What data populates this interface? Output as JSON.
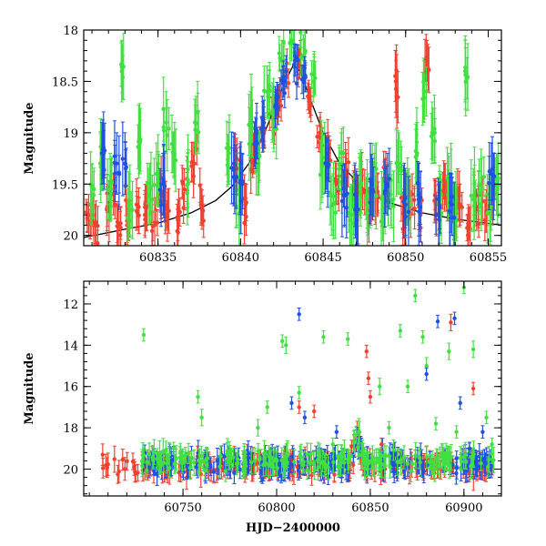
{
  "colors": {
    "red": "#f04030",
    "green": "#40e040",
    "blue": "#2050e0",
    "model": "#000000"
  },
  "chart_data": [
    {
      "type": "scatter",
      "title": "",
      "xlabel": "",
      "ylabel": "Magnitude",
      "xlim": [
        60830.5,
        60855.8
      ],
      "ylim": [
        20.1,
        18.0
      ],
      "y_inverted": true,
      "xticks": [
        60835,
        60840,
        60845,
        60850,
        60855
      ],
      "xtick_labels": [
        "60835",
        "60840",
        "60845",
        "60850",
        "60855"
      ],
      "yticks": [
        18,
        18.5,
        19,
        19.5,
        20
      ],
      "ytick_labels": [
        "18",
        "18.5",
        "19",
        "19.5",
        "20"
      ],
      "grid": false,
      "legend": "none",
      "model_curve": {
        "name": "",
        "x": [
          60830.5,
          60833,
          60835,
          60837,
          60838.5,
          60839.5,
          60840.5,
          60841.5,
          60842.2,
          60842.8,
          60843.2,
          60843.6,
          60844.2,
          60845,
          60846,
          60847.5,
          60849,
          60851,
          60853,
          60855.8
        ],
        "y": [
          20.02,
          19.94,
          19.88,
          19.78,
          19.66,
          19.52,
          19.3,
          18.98,
          18.7,
          18.47,
          18.34,
          18.4,
          18.66,
          19.0,
          19.3,
          19.55,
          19.68,
          19.78,
          19.84,
          19.9
        ]
      },
      "series": [
        {
          "color": "red",
          "points": [
            [
              60830.8,
              19.8,
              0.2
            ],
            [
              60831.2,
              19.9,
              0.2
            ],
            [
              60831.9,
              19.75,
              0.25
            ],
            [
              60832.3,
              19.6,
              0.2
            ],
            [
              60832.6,
              19.9,
              0.2
            ],
            [
              60833.2,
              19.85,
              0.2
            ],
            [
              60833.7,
              19.7,
              0.25
            ],
            [
              60834.2,
              19.8,
              0.2
            ],
            [
              60834.8,
              19.9,
              0.2
            ],
            [
              60835.2,
              19.6,
              0.2
            ],
            [
              60835.6,
              19.75,
              0.2
            ],
            [
              60836.2,
              19.85,
              0.2
            ],
            [
              60836.6,
              19.55,
              0.2
            ],
            [
              60837.2,
              19.3,
              0.2
            ],
            [
              60837.6,
              19.7,
              0.2
            ],
            [
              60839.8,
              19.35,
              0.2
            ],
            [
              60840.3,
              19.7,
              0.2
            ],
            [
              60840.8,
              19.2,
              0.2
            ],
            [
              60841.3,
              19.0,
              0.15
            ],
            [
              60841.9,
              18.8,
              0.15
            ],
            [
              60842.3,
              18.7,
              0.15
            ],
            [
              60842.8,
              18.45,
              0.12
            ],
            [
              60843.6,
              18.35,
              0.12
            ],
            [
              60844.2,
              18.7,
              0.15
            ],
            [
              60844.8,
              19.0,
              0.15
            ],
            [
              60845.3,
              19.2,
              0.2
            ],
            [
              60845.8,
              19.5,
              0.2
            ],
            [
              60846.4,
              19.4,
              0.2
            ],
            [
              60846.9,
              19.6,
              0.2
            ],
            [
              60847.4,
              19.55,
              0.2
            ],
            [
              60847.9,
              19.7,
              0.2
            ],
            [
              60848.3,
              19.6,
              0.2
            ],
            [
              60848.8,
              19.45,
              0.2
            ],
            [
              60849.4,
              18.5,
              0.3
            ],
            [
              60849.9,
              19.75,
              0.2
            ],
            [
              60850.4,
              19.6,
              0.2
            ],
            [
              60850.9,
              19.8,
              0.2
            ],
            [
              60851.3,
              18.3,
              0.2
            ],
            [
              60851.8,
              19.65,
              0.2
            ],
            [
              60852.4,
              19.5,
              0.2
            ],
            [
              60852.9,
              19.8,
              0.2
            ],
            [
              60853.3,
              19.7,
              0.2
            ],
            [
              60853.8,
              19.9,
              0.2
            ],
            [
              60854.3,
              19.75,
              0.2
            ],
            [
              60854.8,
              19.85,
              0.2
            ],
            [
              60855.3,
              19.6,
              0.2
            ]
          ]
        },
        {
          "color": "green",
          "points": [
            [
              60831.0,
              19.6,
              0.3
            ],
            [
              60831.5,
              19.3,
              0.3
            ],
            [
              60832.1,
              19.5,
              0.3
            ],
            [
              60832.8,
              18.4,
              0.3
            ],
            [
              60833.3,
              19.7,
              0.3
            ],
            [
              60833.9,
              19.1,
              0.3
            ],
            [
              60834.5,
              19.6,
              0.3
            ],
            [
              60834.9,
              19.4,
              0.3
            ],
            [
              60835.5,
              18.9,
              0.3
            ],
            [
              60836.0,
              19.2,
              0.3
            ],
            [
              60836.8,
              19.5,
              0.3
            ],
            [
              60837.4,
              18.8,
              0.3
            ],
            [
              60839.3,
              19.2,
              0.3
            ],
            [
              60839.9,
              19.6,
              0.3
            ],
            [
              60840.6,
              18.9,
              0.3
            ],
            [
              60841.1,
              19.3,
              0.3
            ],
            [
              60841.6,
              18.6,
              0.25
            ],
            [
              60842.0,
              18.9,
              0.25
            ],
            [
              60842.5,
              18.3,
              0.2
            ],
            [
              60843.1,
              18.1,
              0.2
            ],
            [
              60843.8,
              18.25,
              0.2
            ],
            [
              60844.4,
              18.5,
              0.2
            ],
            [
              60845.0,
              19.3,
              0.3
            ],
            [
              60845.6,
              19.7,
              0.3
            ],
            [
              60846.1,
              19.3,
              0.3
            ],
            [
              60846.7,
              19.8,
              0.3
            ],
            [
              60847.2,
              19.5,
              0.3
            ],
            [
              60847.7,
              19.7,
              0.3
            ],
            [
              60848.1,
              19.5,
              0.3
            ],
            [
              60848.6,
              19.75,
              0.3
            ],
            [
              60849.1,
              19.6,
              0.3
            ],
            [
              60849.6,
              19.3,
              0.3
            ],
            [
              60850.2,
              19.65,
              0.3
            ],
            [
              60850.7,
              19.2,
              0.3
            ],
            [
              60851.1,
              18.6,
              0.3
            ],
            [
              60851.6,
              19.0,
              0.3
            ],
            [
              60852.1,
              19.7,
              0.3
            ],
            [
              60852.6,
              19.5,
              0.3
            ],
            [
              60853.0,
              19.8,
              0.3
            ],
            [
              60853.6,
              18.4,
              0.3
            ],
            [
              60854.1,
              19.65,
              0.3
            ],
            [
              60854.6,
              19.55,
              0.3
            ],
            [
              60855.1,
              19.75,
              0.3
            ],
            [
              60855.5,
              19.5,
              0.3
            ]
          ]
        },
        {
          "color": "blue",
          "points": [
            [
              60831.6,
              19.2,
              0.3
            ],
            [
              60832.5,
              19.3,
              0.3
            ],
            [
              60833.0,
              19.3,
              0.3
            ],
            [
              60835.3,
              19.5,
              0.3
            ],
            [
              60839.6,
              19.3,
              0.3
            ],
            [
              60840.1,
              19.5,
              0.3
            ],
            [
              60840.9,
              19.1,
              0.25
            ],
            [
              60841.4,
              18.95,
              0.2
            ],
            [
              60842.1,
              18.75,
              0.2
            ],
            [
              60842.6,
              18.5,
              0.15
            ],
            [
              60843.3,
              18.3,
              0.15
            ],
            [
              60843.9,
              18.45,
              0.15
            ],
            [
              60845.2,
              19.3,
              0.25
            ],
            [
              60846.3,
              19.6,
              0.3
            ],
            [
              60847.0,
              19.7,
              0.3
            ],
            [
              60848.0,
              19.55,
              0.3
            ],
            [
              60848.9,
              19.5,
              0.3
            ],
            [
              60850.0,
              19.7,
              0.3
            ],
            [
              60850.8,
              19.6,
              0.3
            ],
            [
              60852.0,
              19.8,
              0.3
            ],
            [
              60852.8,
              19.7,
              0.3
            ],
            [
              60855.2,
              19.4,
              0.3
            ]
          ]
        }
      ]
    },
    {
      "type": "scatter",
      "title": "",
      "xlabel": "HJD−2400000",
      "ylabel": "Magnitude",
      "xlim": [
        60697,
        60920
      ],
      "ylim": [
        21.3,
        10.9
      ],
      "y_inverted": true,
      "xticks": [
        60750,
        60800,
        60850,
        60900
      ],
      "xtick_labels": [
        "60750",
        "60800",
        "60850",
        "60900"
      ],
      "yticks": [
        12,
        14,
        16,
        18,
        20
      ],
      "ytick_labels": [
        "12",
        "14",
        "16",
        "18",
        "20"
      ],
      "grid": false,
      "legend": "none",
      "baseline_series": [
        {
          "color": "red",
          "x_start": 60705,
          "x_end": 60916,
          "mean_mag": 19.85
        },
        {
          "color": "blue",
          "x_start": 60728,
          "x_end": 60916,
          "mean_mag": 19.75
        },
        {
          "color": "green",
          "x_start": 60728,
          "x_end": 60916,
          "mean_mag": 19.6
        }
      ],
      "series": [
        {
          "color": "green",
          "points": [
            [
              60729,
              13.5,
              0.3
            ],
            [
              60758,
              16.5,
              0.3
            ],
            [
              60760,
              17.5,
              0.4
            ],
            [
              60745,
              19.0,
              0.3
            ],
            [
              60790,
              18.0,
              0.4
            ],
            [
              60795,
              17.0,
              0.3
            ],
            [
              60803,
              13.8,
              0.3
            ],
            [
              60805,
              14.0,
              0.4
            ],
            [
              60812,
              16.3,
              0.3
            ],
            [
              60825,
              13.6,
              0.3
            ],
            [
              60830,
              18.8,
              0.3
            ],
            [
              60838,
              13.7,
              0.3
            ],
            [
              60855,
              16.0,
              0.4
            ],
            [
              60860,
              18.0,
              0.3
            ],
            [
              60866,
              13.3,
              0.3
            ],
            [
              60870,
              16.0,
              0.3
            ],
            [
              60874,
              11.6,
              0.3
            ],
            [
              60878,
              13.6,
              0.3
            ],
            [
              60880,
              15.0,
              0.4
            ],
            [
              60885,
              17.8,
              0.3
            ],
            [
              60892,
              14.3,
              0.4
            ],
            [
              60896,
              18.2,
              0.3
            ],
            [
              60900,
              11.2,
              0.3
            ],
            [
              60905,
              14.2,
              0.4
            ],
            [
              60912,
              17.5,
              0.3
            ],
            [
              60915,
              18.8,
              0.3
            ]
          ]
        },
        {
          "color": "red",
          "points": [
            [
              60840,
              18.9,
              0.3
            ],
            [
              60848,
              14.3,
              0.3
            ],
            [
              60849,
              15.6,
              0.3
            ],
            [
              60850,
              16.5,
              0.3
            ],
            [
              60856,
              18.8,
              0.3
            ],
            [
              60893,
              12.9,
              0.4
            ],
            [
              60905,
              16.1,
              0.3
            ],
            [
              60812,
              17.0,
              0.3
            ],
            [
              60820,
              17.2,
              0.3
            ]
          ]
        },
        {
          "color": "blue",
          "points": [
            [
              60812,
              12.5,
              0.3
            ],
            [
              60808,
              16.8,
              0.3
            ],
            [
              60815,
              17.5,
              0.3
            ],
            [
              60832,
              18.2,
              0.3
            ],
            [
              60880,
              15.4,
              0.3
            ],
            [
              60886,
              12.85,
              0.3
            ],
            [
              60895,
              12.7,
              0.3
            ],
            [
              60898,
              16.8,
              0.3
            ],
            [
              60910,
              18.2,
              0.3
            ],
            [
              60903,
              19.0,
              0.3
            ]
          ]
        }
      ]
    }
  ]
}
